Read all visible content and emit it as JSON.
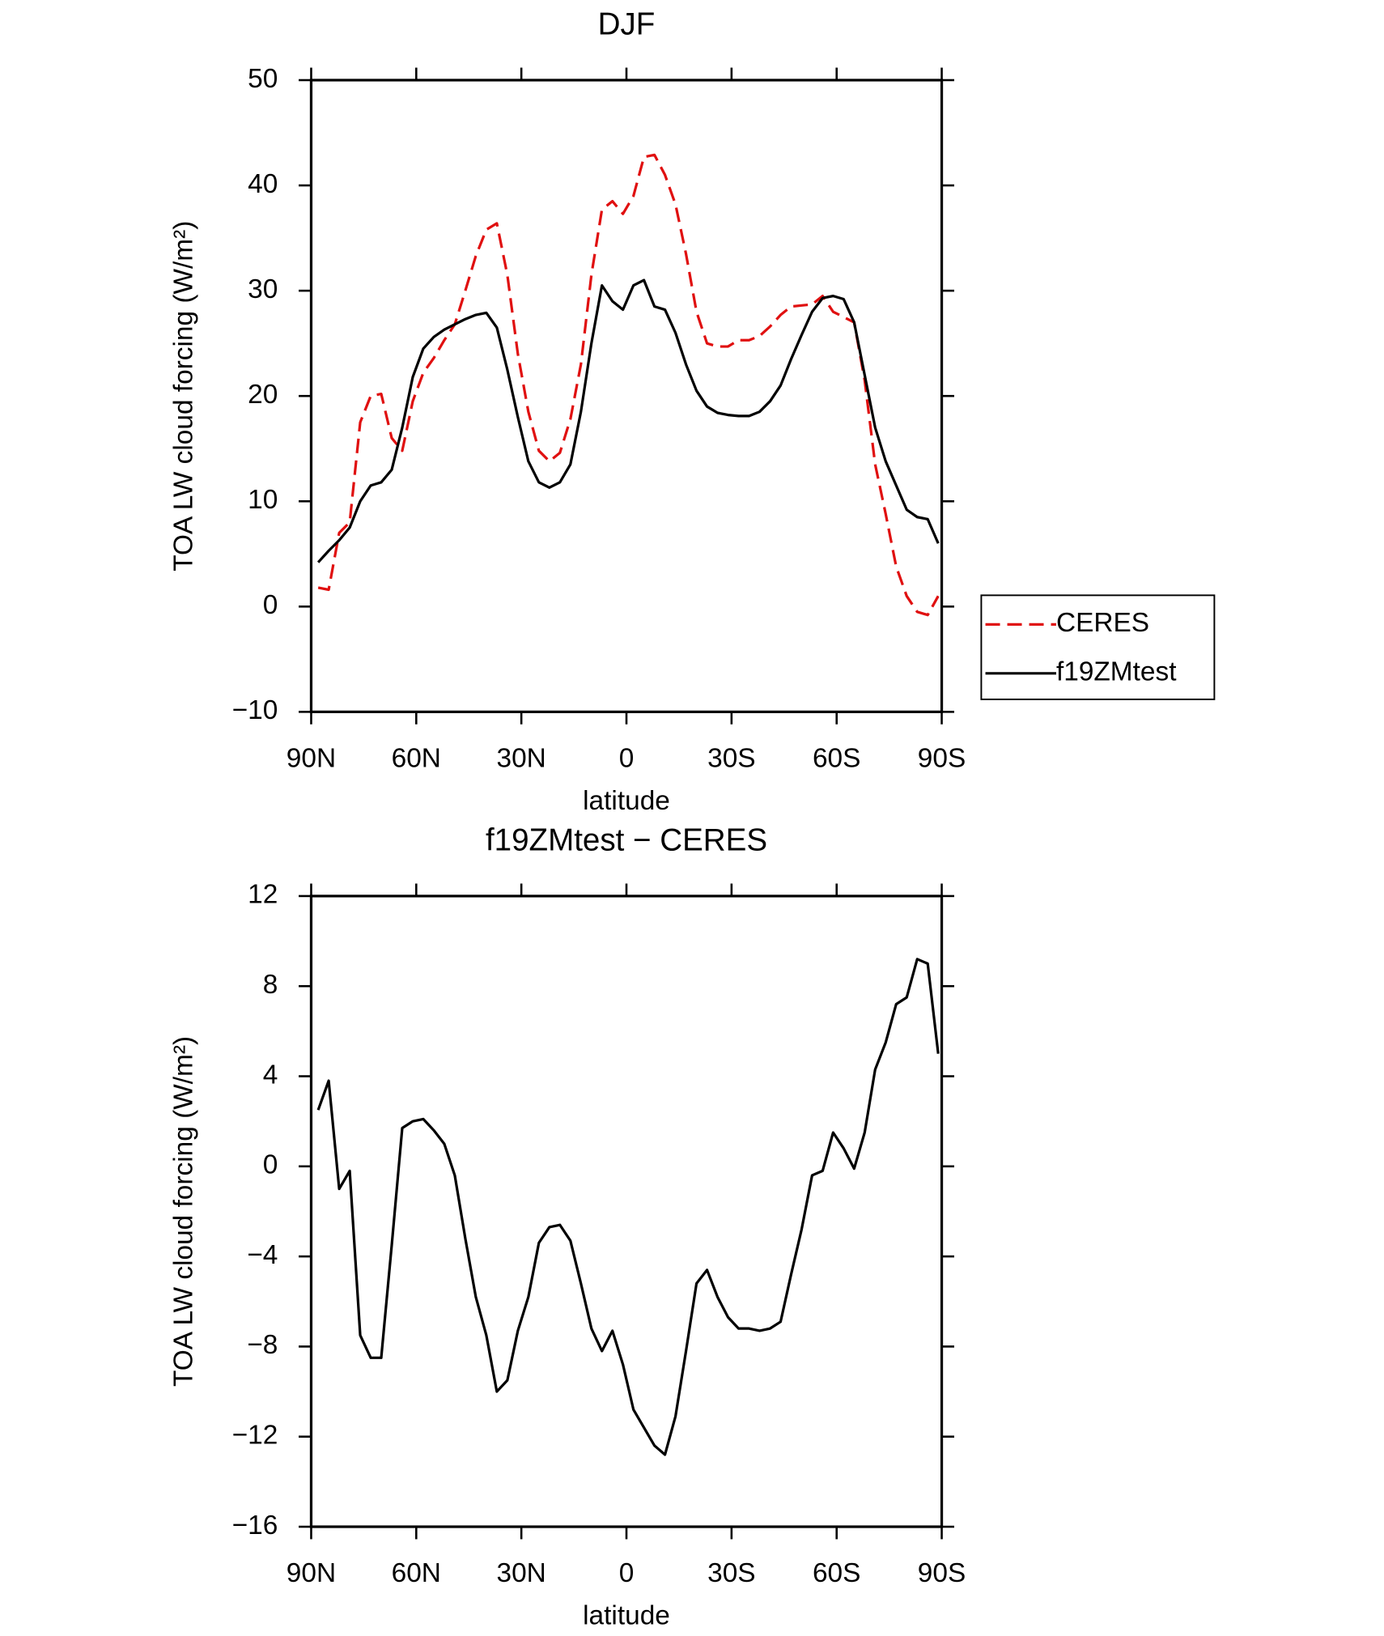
{
  "chart_data": [
    {
      "type": "line",
      "title": "DJF",
      "x_label": "latitude",
      "y_label": "TOA LW cloud forcing (W/m²)",
      "x": [
        88,
        85,
        82,
        79,
        76,
        73,
        70,
        67,
        64,
        61,
        58,
        55,
        52,
        49,
        46,
        43,
        40,
        37,
        34,
        31,
        28,
        25,
        22,
        19,
        16,
        13,
        10,
        7,
        4,
        1,
        -2,
        -5,
        -8,
        -11,
        -14,
        -17,
        -20,
        -23,
        -26,
        -29,
        -32,
        -35,
        -38,
        -41,
        -44,
        -47,
        -50,
        -53,
        -56,
        -59,
        -62,
        -65,
        -68,
        -71,
        -74,
        -77,
        -80,
        -83,
        -86,
        -89
      ],
      "series": [
        {
          "name": "CERES",
          "color": "#e01010",
          "dash": true,
          "values": [
            1.8,
            1.6,
            7,
            8,
            17.5,
            20,
            20.2,
            16,
            14.8,
            19.5,
            22.2,
            23.6,
            25.3,
            26.8,
            30,
            33.3,
            35.8,
            36.4,
            31.5,
            24,
            18.5,
            14.8,
            13.8,
            14.6,
            17.8,
            23,
            31.5,
            37.7,
            38.5,
            37.3,
            39,
            42.7,
            42.9,
            41,
            38.2,
            33.5,
            28,
            25,
            24.7,
            24.7,
            25.3,
            25.3,
            25.7,
            26.6,
            27.7,
            28.5,
            28.6,
            28.7,
            29.5,
            28,
            27.5,
            27,
            21.5,
            13.5,
            8.8,
            3.8,
            1,
            -0.5,
            -0.8,
            1
          ]
        },
        {
          "name": "f19ZMtest",
          "color": "#000000",
          "dash": false,
          "values": [
            4.2,
            5.3,
            6.3,
            7.5,
            10,
            11.5,
            11.8,
            13,
            17,
            21.8,
            24.5,
            25.6,
            26.3,
            26.8,
            27.3,
            27.7,
            27.9,
            26.5,
            22.5,
            18,
            13.8,
            11.8,
            11.3,
            11.8,
            13.5,
            18.5,
            25,
            30.5,
            29,
            28.2,
            30.5,
            31,
            28.5,
            28.2,
            26,
            23,
            20.5,
            19,
            18.4,
            18.2,
            18.1,
            18.1,
            18.5,
            19.5,
            21,
            23.5,
            25.8,
            28,
            29.3,
            29.5,
            29.2,
            27,
            22,
            17,
            13.8,
            11.5,
            9.2,
            8.5,
            8.3,
            6
          ]
        }
      ],
      "xlim": [
        90,
        -90
      ],
      "xticks": [
        {
          "value": 90,
          "label": "90N"
        },
        {
          "value": 60,
          "label": "60N"
        },
        {
          "value": 30,
          "label": "30N"
        },
        0,
        {
          "value": -30,
          "label": "30S"
        },
        {
          "value": -60,
          "label": "60S"
        },
        {
          "value": -90,
          "label": "90S"
        }
      ],
      "ylim": [
        -10,
        50
      ],
      "yticks": [
        {
          "value": -10,
          "label": "−10"
        },
        0,
        10,
        20,
        30,
        40,
        50
      ],
      "legend": "right"
    },
    {
      "type": "line",
      "title": "f19ZMtest − CERES",
      "x_label": "latitude",
      "y_label": "TOA LW cloud forcing (W/m²)",
      "x": [
        88,
        85,
        82,
        79,
        76,
        73,
        70,
        67,
        64,
        61,
        58,
        55,
        52,
        49,
        46,
        43,
        40,
        37,
        34,
        31,
        28,
        25,
        22,
        19,
        16,
        13,
        10,
        7,
        4,
        1,
        -2,
        -5,
        -8,
        -11,
        -14,
        -17,
        -20,
        -23,
        -26,
        -29,
        -32,
        -35,
        -38,
        -41,
        -44,
        -47,
        -50,
        -53,
        -56,
        -59,
        -62,
        -65,
        -68,
        -71,
        -74,
        -77,
        -80,
        -83,
        -86,
        -89
      ],
      "series": [
        {
          "color": "#000000",
          "dash": false,
          "values": [
            2.5,
            3.8,
            -1,
            -0.2,
            -7.5,
            -8.5,
            -8.5,
            -3.5,
            1.7,
            2,
            2.1,
            1.6,
            1,
            -0.4,
            -3.2,
            -5.8,
            -7.5,
            -10,
            -9.5,
            -7.3,
            -5.8,
            -3.4,
            -2.7,
            -2.6,
            -3.3,
            -5.2,
            -7.2,
            -8.2,
            -7.3,
            -8.8,
            -10.8,
            -11.6,
            -12.4,
            -12.8,
            -11.1,
            -8.2,
            -5.2,
            -4.6,
            -5.8,
            -6.7,
            -7.2,
            -7.2,
            -7.3,
            -7.2,
            -6.9,
            -4.8,
            -2.8,
            -0.4,
            -0.2,
            1.5,
            0.8,
            -0.1,
            1.5,
            4.3,
            5.5,
            7.2,
            7.5,
            9.2,
            9,
            5
          ]
        }
      ],
      "xlim": [
        90,
        -90
      ],
      "xticks": [
        {
          "value": 90,
          "label": "90N"
        },
        {
          "value": 60,
          "label": "60N"
        },
        {
          "value": 30,
          "label": "30N"
        },
        0,
        {
          "value": -30,
          "label": "30S"
        },
        {
          "value": -60,
          "label": "60S"
        },
        {
          "value": -90,
          "label": "90S"
        }
      ],
      "ylim": [
        -16,
        12
      ],
      "yticks": [
        {
          "value": -16,
          "label": "−16"
        },
        {
          "value": -12,
          "label": "−12"
        },
        {
          "value": -8,
          "label": "−8"
        },
        {
          "value": -4,
          "label": "−4"
        },
        0,
        4,
        8,
        12
      ]
    }
  ]
}
